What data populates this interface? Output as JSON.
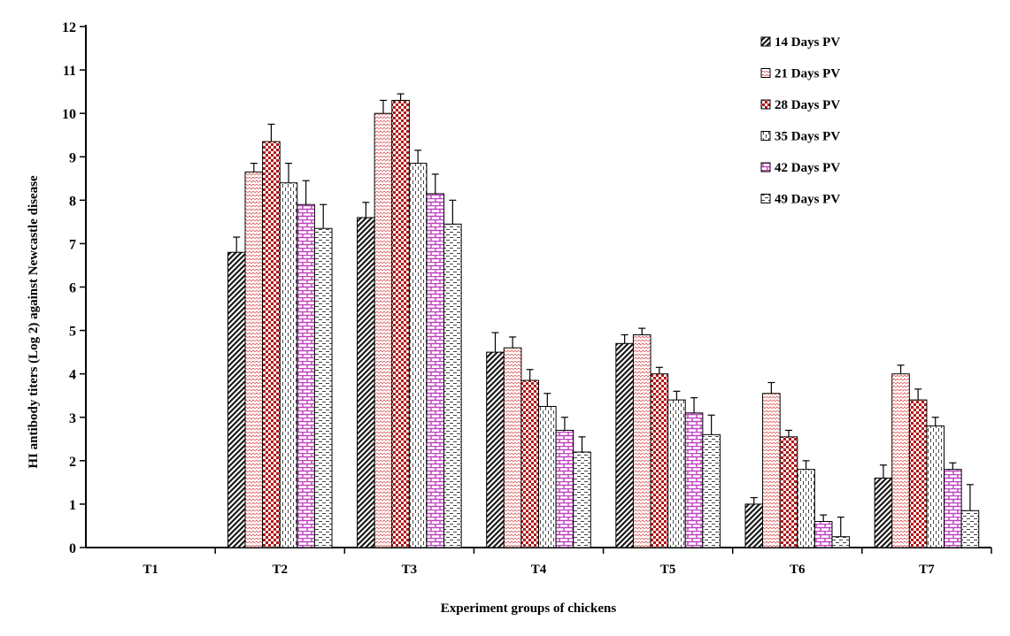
{
  "chart_data": {
    "type": "bar",
    "title": "",
    "xlabel": "Experiment groups of chickens",
    "ylabel": "HI antibody titers (Log 2) against Newcastle disease",
    "ylim": [
      0,
      12
    ],
    "yticks": [
      "0",
      "1",
      "2",
      "3",
      "4",
      "5",
      "6",
      "7",
      "8",
      "9",
      "10",
      "11",
      "12"
    ],
    "categories": [
      "T1",
      "T2",
      "T3",
      "T4",
      "T5",
      "T6",
      "T7"
    ],
    "grid": false,
    "legend_position": "top-right",
    "series": [
      {
        "name": "14 Days PV",
        "color": "#1a1a1a",
        "pattern": "diagonal-dark",
        "values": [
          0,
          6.8,
          7.6,
          4.5,
          4.7,
          1.0,
          1.6
        ],
        "errors": [
          0,
          0.35,
          0.35,
          0.45,
          0.2,
          0.15,
          0.3
        ]
      },
      {
        "name": "21 Days PV",
        "color": "#e06060",
        "pattern": "zigzag-light",
        "values": [
          0,
          8.65,
          10.0,
          4.6,
          4.9,
          3.55,
          4.0
        ],
        "errors": [
          0,
          0.2,
          0.3,
          0.25,
          0.15,
          0.25,
          0.2
        ]
      },
      {
        "name": "28 Days PV",
        "color": "#b01818",
        "pattern": "checker-red",
        "values": [
          0,
          9.35,
          10.3,
          3.85,
          4.0,
          2.55,
          3.4
        ],
        "errors": [
          0,
          0.4,
          0.15,
          0.25,
          0.15,
          0.15,
          0.25
        ]
      },
      {
        "name": "35 Days PV",
        "color": "#303030",
        "pattern": "dashed-vertical",
        "values": [
          0,
          8.4,
          8.85,
          3.25,
          3.4,
          1.8,
          2.8
        ],
        "errors": [
          0,
          0.45,
          0.3,
          0.3,
          0.2,
          0.2,
          0.2
        ]
      },
      {
        "name": "42 Days PV",
        "color": "#c040c0",
        "pattern": "brick-magenta",
        "values": [
          0,
          7.9,
          8.15,
          2.7,
          3.1,
          0.6,
          1.8
        ],
        "errors": [
          0,
          0.55,
          0.45,
          0.3,
          0.35,
          0.15,
          0.15
        ]
      },
      {
        "name": "49 Days PV",
        "color": "#404040",
        "pattern": "dashed-horizontal",
        "values": [
          0,
          7.35,
          7.45,
          2.2,
          2.6,
          0.25,
          0.85
        ],
        "errors": [
          0,
          0.55,
          0.55,
          0.35,
          0.45,
          0.45,
          0.6
        ]
      }
    ]
  }
}
